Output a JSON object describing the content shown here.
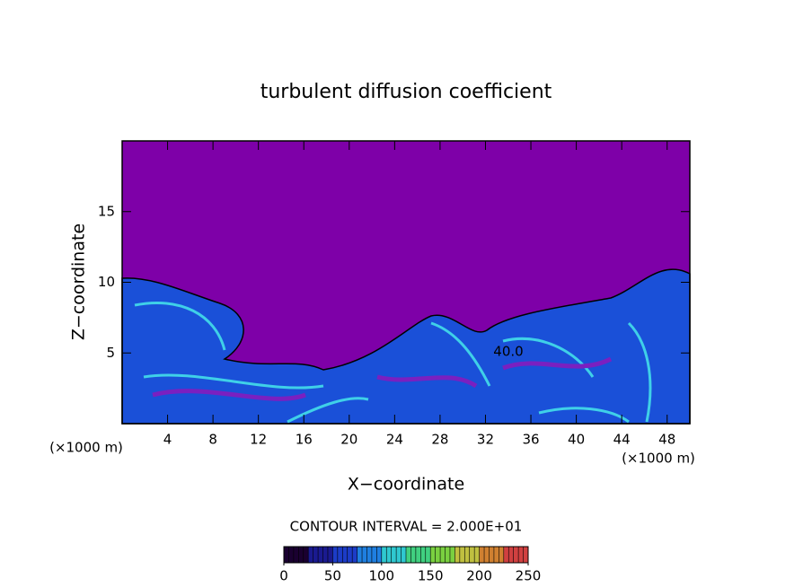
{
  "chart_data": {
    "type": "contour",
    "title": "turbulent diffusion coefficient",
    "xlabel": "X−coordinate",
    "ylabel": "Z−coordinate",
    "xunit": "(×1000 m)",
    "xlim": [
      0,
      50
    ],
    "xticks": [
      4,
      8,
      12,
      16,
      20,
      24,
      28,
      32,
      36,
      40,
      44,
      48
    ],
    "ylim": [
      0,
      20
    ],
    "yticks": [
      5,
      10,
      15
    ],
    "contour_interval": "CONTOUR INTERVAL = 2.000E+01",
    "contour_label": "40.0",
    "colorbar": {
      "lim": [
        0,
        250
      ],
      "ticks": [
        0,
        50,
        100,
        150,
        200,
        250
      ],
      "colors": [
        "#1a0030",
        "#1a1a90",
        "#1c3cc8",
        "#1f7fe0",
        "#2fc8d0",
        "#40d080",
        "#7ad040",
        "#c0c040",
        "#d08030",
        "#d04040"
      ]
    }
  }
}
